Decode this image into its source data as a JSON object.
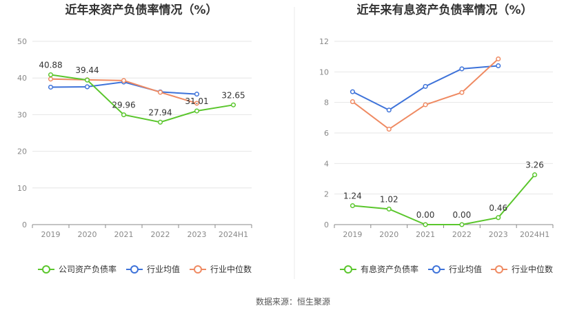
{
  "source_note": "数据来源：恒生聚源",
  "colors": {
    "company": "#5ac62c",
    "avg": "#3d72d9",
    "median": "#ef8a62",
    "grid": "#e6e6e6",
    "axis": "#888888",
    "tick_text": "#888888",
    "label_text": "#333333",
    "divider": "#e8e8e8"
  },
  "chart_data": [
    {
      "type": "line",
      "title": "近年来资产负债率情况（%）",
      "categories": [
        "2019",
        "2020",
        "2021",
        "2022",
        "2023",
        "2024H1"
      ],
      "ylim": [
        0,
        50
      ],
      "yticks": [
        "0",
        "10",
        "20",
        "30",
        "40",
        "50"
      ],
      "series": [
        {
          "name": "公司资产负债率",
          "key": "company",
          "values": [
            40.88,
            39.44,
            29.96,
            27.94,
            31.01,
            32.65
          ],
          "labels": [
            "40.88",
            "39.44",
            "29.96",
            "27.94",
            "31.01",
            "32.65"
          ]
        },
        {
          "name": "行业均值",
          "key": "avg",
          "values": [
            37.5,
            37.6,
            38.9,
            36.2,
            35.6,
            null
          ]
        },
        {
          "name": "行业中位数",
          "key": "median",
          "values": [
            39.7,
            39.5,
            39.3,
            36.1,
            33.1,
            null
          ]
        }
      ],
      "legend_position": "bottom",
      "grid": true
    },
    {
      "type": "line",
      "title": "近年来有息资产负债率情况（%）",
      "categories": [
        "2019",
        "2020",
        "2021",
        "2022",
        "2023",
        "2024H1"
      ],
      "ylim": [
        0,
        12
      ],
      "yticks": [
        "0",
        "2",
        "4",
        "6",
        "8",
        "10",
        "12"
      ],
      "series": [
        {
          "name": "有息资产负债率",
          "key": "company",
          "values": [
            1.24,
            1.02,
            0.0,
            0.0,
            0.46,
            3.26
          ],
          "labels": [
            "1.24",
            "1.02",
            "0.00",
            "0.00",
            "0.46",
            "3.26"
          ]
        },
        {
          "name": "行业均值",
          "key": "avg",
          "values": [
            8.7,
            7.5,
            9.05,
            10.2,
            10.4,
            null
          ]
        },
        {
          "name": "行业中位数",
          "key": "median",
          "values": [
            8.05,
            6.25,
            7.85,
            8.65,
            10.85,
            null
          ]
        }
      ],
      "legend_position": "bottom",
      "grid": true
    }
  ]
}
